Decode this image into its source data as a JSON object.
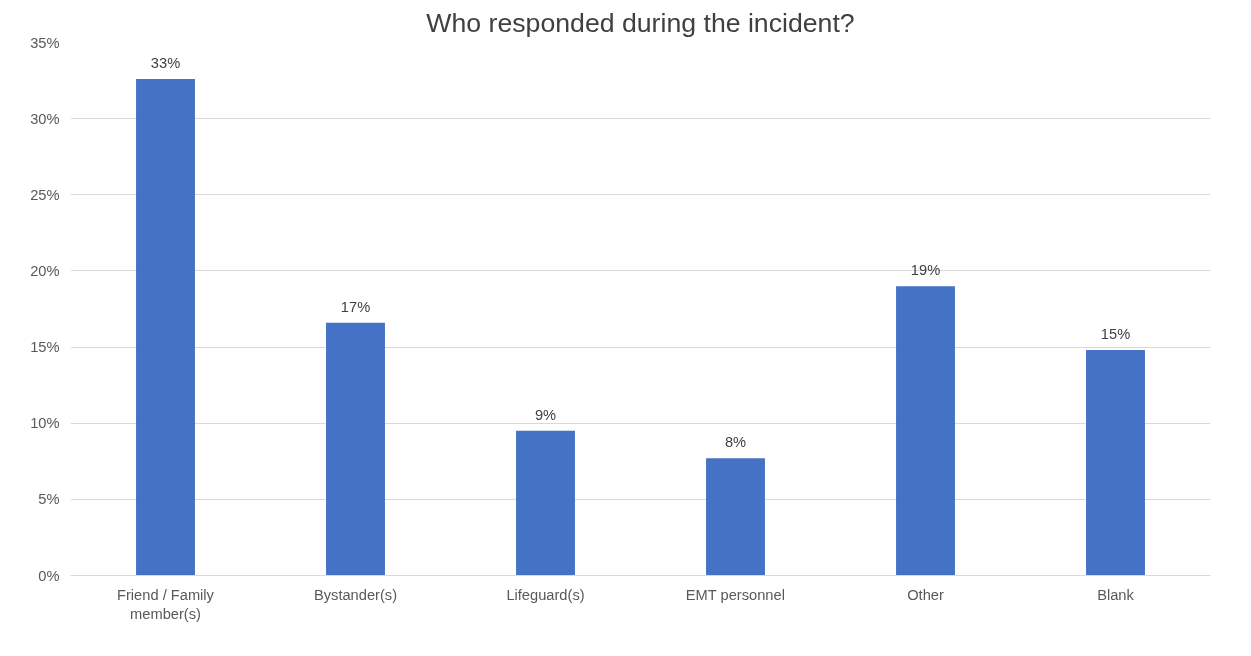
{
  "chart_data": {
    "type": "bar",
    "title": "Who responded during the incident?",
    "categories": [
      "Friend / Family member(s)",
      "Bystander(s)",
      "Lifeguard(s)",
      "EMT personnel",
      "Other",
      "Blank"
    ],
    "values": [
      32.6,
      16.6,
      9.5,
      7.7,
      19.0,
      14.8
    ],
    "value_labels": [
      "33%",
      "17%",
      "9%",
      "8%",
      "19%",
      "15%"
    ],
    "color": "#4472c4",
    "grid": "y",
    "ylim": [
      0,
      35
    ],
    "yticks": [
      {
        "value": 0,
        "label": "0%"
      },
      {
        "value": 5,
        "label": "5%"
      },
      {
        "value": 10,
        "label": "10%"
      },
      {
        "value": 15,
        "label": "15%"
      },
      {
        "value": 20,
        "label": "20%"
      },
      {
        "value": 25,
        "label": "25%"
      },
      {
        "value": 30,
        "label": "30%"
      },
      {
        "value": 35,
        "label": "35%"
      }
    ]
  }
}
